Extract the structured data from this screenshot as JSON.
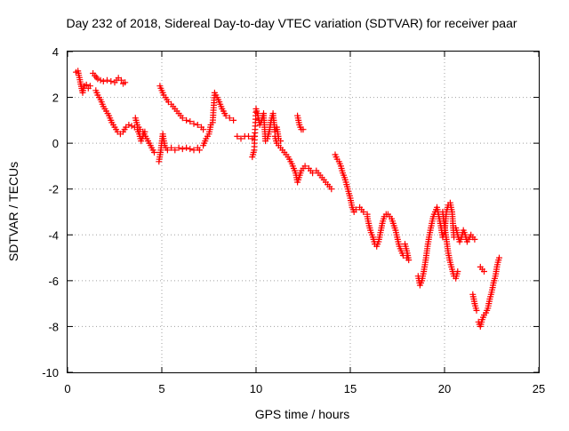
{
  "chart_data": {
    "type": "scatter",
    "title": "Day 232 of 2018, Sidereal Day-to-day VTEC variation (SDTVAR) for receiver paar",
    "xlabel": "GPS time / hours",
    "ylabel": "SDTVAR / TECUs",
    "xlim": [
      0,
      25
    ],
    "ylim": [
      -10,
      4
    ],
    "xticks": [
      0,
      5,
      10,
      15,
      20,
      25
    ],
    "yticks": [
      -10,
      -8,
      -6,
      -4,
      -2,
      0,
      2,
      4
    ],
    "xtick_labels": [
      "0",
      "5",
      "10",
      "15",
      "20",
      "25"
    ],
    "ytick_labels": [
      "-10",
      "-8",
      "-6",
      "-4",
      "-2",
      "0",
      "2",
      "4"
    ],
    "grid": true,
    "marker": "+",
    "color": "#ff0000",
    "series": [
      {
        "name": "tracks-1",
        "x": [
          0.45,
          0.55,
          0.8,
          0.85,
          0.9,
          1.0,
          1.1,
          1.2
        ],
        "y": [
          3.1,
          3.15,
          2.2,
          2.4,
          2.5,
          2.55,
          2.4,
          2.5
        ]
      },
      {
        "name": "tracks-2",
        "x": [
          1.35,
          1.45,
          1.6,
          1.75,
          1.9,
          2.1,
          2.3,
          2.5,
          2.7,
          2.85,
          2.95,
          3.05
        ],
        "y": [
          3.05,
          2.95,
          2.8,
          2.75,
          2.7,
          2.75,
          2.7,
          2.65,
          2.85,
          2.75,
          2.6,
          2.65
        ]
      },
      {
        "name": "tracks-3",
        "x": [
          1.5,
          1.6,
          1.75,
          1.9,
          2.05,
          2.2,
          2.35,
          2.5,
          2.65,
          2.8,
          2.95,
          3.1,
          3.25,
          3.4,
          3.55,
          3.7,
          3.8,
          3.9,
          4.0,
          4.1
        ],
        "y": [
          2.3,
          2.1,
          1.9,
          1.6,
          1.4,
          1.2,
          0.9,
          0.7,
          0.5,
          0.4,
          0.5,
          0.7,
          0.8,
          0.75,
          0.7,
          0.6,
          0.4,
          0.1,
          0.3,
          0.5
        ]
      },
      {
        "name": "tracks-4",
        "x": [
          3.6,
          3.7,
          3.85,
          4.0,
          4.2,
          4.4,
          4.6
        ],
        "y": [
          1.1,
          0.8,
          0.6,
          0.5,
          0.2,
          -0.1,
          -0.4
        ]
      },
      {
        "name": "tracks-5",
        "x": [
          4.9,
          5.0,
          5.1,
          5.2,
          5.35,
          5.5,
          5.7,
          5.9,
          6.1,
          6.3,
          6.5,
          6.7,
          6.9,
          7.1,
          7.2
        ],
        "y": [
          2.5,
          2.3,
          2.1,
          2.0,
          1.8,
          1.7,
          1.5,
          1.3,
          1.1,
          1.0,
          0.95,
          0.85,
          0.8,
          0.7,
          0.6
        ]
      },
      {
        "name": "tracks-6",
        "x": [
          4.85,
          4.95,
          5.05,
          5.15,
          5.3,
          5.5,
          5.7,
          5.9,
          6.1,
          6.3,
          6.5,
          6.7,
          6.9,
          7.0
        ],
        "y": [
          -0.8,
          -0.3,
          0.4,
          -0.1,
          -0.3,
          -0.2,
          -0.3,
          -0.2,
          -0.25,
          -0.2,
          -0.25,
          -0.3,
          -0.2,
          -0.3
        ]
      },
      {
        "name": "tracks-7",
        "x": [
          7.2,
          7.35,
          7.5,
          7.6,
          7.7,
          7.8,
          8.0,
          8.2,
          8.4,
          8.6,
          8.8
        ],
        "y": [
          -0.1,
          0.2,
          0.4,
          0.8,
          0.9,
          2.2,
          1.9,
          1.5,
          1.2,
          1.1,
          1.0
        ]
      },
      {
        "name": "tracks-8",
        "x": [
          9.0,
          9.2,
          9.4,
          9.6,
          9.8,
          9.9
        ],
        "y": [
          0.3,
          0.2,
          0.3,
          0.3,
          0.2,
          0.3
        ]
      },
      {
        "name": "tracks-9",
        "x": [
          9.8,
          9.9,
          10.0,
          10.1,
          10.2,
          10.3,
          10.4,
          10.5,
          10.6,
          10.7,
          10.8,
          10.9,
          11.0,
          11.1,
          11.2,
          11.3
        ],
        "y": [
          -0.6,
          -0.3,
          1.5,
          1.2,
          0.8,
          1.0,
          1.3,
          0.1,
          0.2,
          0.5,
          1.0,
          1.3,
          0.5,
          0.7,
          0.2,
          0.1
        ]
      },
      {
        "name": "tracks-10",
        "x": [
          11.0,
          11.1,
          11.3,
          11.5,
          11.7,
          11.9,
          12.1,
          12.2,
          12.4,
          12.6,
          12.8,
          13.0,
          13.2,
          13.4,
          13.6,
          13.8,
          14.0
        ],
        "y": [
          0.3,
          0.0,
          -0.2,
          -0.4,
          -0.6,
          -0.9,
          -1.3,
          -1.7,
          -1.2,
          -1.0,
          -1.1,
          -1.3,
          -1.2,
          -1.4,
          -1.6,
          -1.8,
          -2.0
        ]
      },
      {
        "name": "tracks-11",
        "x": [
          12.2,
          12.3,
          12.4,
          12.5
        ],
        "y": [
          1.2,
          0.8,
          0.6,
          0.6
        ]
      },
      {
        "name": "tracks-12",
        "x": [
          14.2,
          14.3,
          14.4,
          14.5,
          14.6,
          14.7,
          14.8,
          14.9,
          15.0,
          15.1,
          15.2,
          15.3,
          15.5,
          15.7,
          15.9
        ],
        "y": [
          -0.5,
          -0.7,
          -0.8,
          -1.0,
          -1.3,
          -1.5,
          -1.8,
          -2.1,
          -2.4,
          -2.8,
          -3.0,
          -2.9,
          -2.8,
          -3.0,
          -3.1
        ]
      },
      {
        "name": "tracks-13",
        "x": [
          15.9,
          16.0,
          16.1,
          16.2,
          16.3,
          16.4,
          16.5,
          16.6,
          16.7,
          16.8,
          16.9,
          17.0,
          17.2,
          17.4,
          17.6,
          17.8,
          18.0
        ],
        "y": [
          -3.2,
          -3.6,
          -3.9,
          -4.1,
          -4.4,
          -4.5,
          -4.3,
          -3.9,
          -3.5,
          -3.2,
          -3.1,
          -3.1,
          -3.3,
          -3.8,
          -4.5,
          -4.9,
          -5.0
        ]
      },
      {
        "name": "tracks-14",
        "x": [
          17.9,
          18.0,
          18.1
        ],
        "y": [
          -4.4,
          -4.7,
          -5.1
        ]
      },
      {
        "name": "tracks-15",
        "x": [
          18.6,
          18.7,
          18.8,
          18.9,
          19.0,
          19.1,
          19.2,
          19.3,
          19.4,
          19.5,
          19.6,
          19.7,
          19.8,
          19.9,
          20.0,
          20.1,
          20.2,
          20.3,
          20.4,
          20.5
        ],
        "y": [
          -5.8,
          -6.2,
          -6.0,
          -5.6,
          -5.1,
          -4.5,
          -4.0,
          -3.6,
          -3.2,
          -3.0,
          -2.8,
          -3.2,
          -3.6,
          -4.1,
          -3.9,
          -3.0,
          -2.7,
          -2.6,
          -3.0,
          -4.1
        ]
      },
      {
        "name": "tracks-16",
        "x": [
          19.9,
          20.0,
          20.1,
          20.2,
          20.3,
          20.4,
          20.5,
          20.6,
          20.7
        ],
        "y": [
          -3.0,
          -3.6,
          -4.2,
          -4.8,
          -5.2,
          -5.5,
          -5.8,
          -5.9,
          -5.6
        ]
      },
      {
        "name": "tracks-17",
        "x": [
          20.6,
          20.7,
          20.8,
          20.9,
          21.0,
          21.1,
          21.2,
          21.4,
          21.6
        ],
        "y": [
          -3.7,
          -4.0,
          -4.3,
          -4.1,
          -3.8,
          -4.0,
          -4.3,
          -4.0,
          -4.2
        ]
      },
      {
        "name": "tracks-18",
        "x": [
          21.5,
          21.6,
          21.7
        ],
        "y": [
          -6.6,
          -7.0,
          -7.3
        ]
      },
      {
        "name": "tracks-19",
        "x": [
          21.8,
          21.9,
          22.0,
          22.1,
          22.2,
          22.3,
          22.4,
          22.5,
          22.6,
          22.7,
          22.8,
          22.9
        ],
        "y": [
          -7.8,
          -8.0,
          -7.7,
          -7.5,
          -7.4,
          -7.2,
          -6.8,
          -6.5,
          -6.1,
          -5.8,
          -5.3,
          -5.0
        ]
      },
      {
        "name": "tracks-20",
        "x": [
          21.9,
          22.0,
          22.1
        ],
        "y": [
          -5.4,
          -5.5,
          -5.6
        ]
      }
    ]
  }
}
